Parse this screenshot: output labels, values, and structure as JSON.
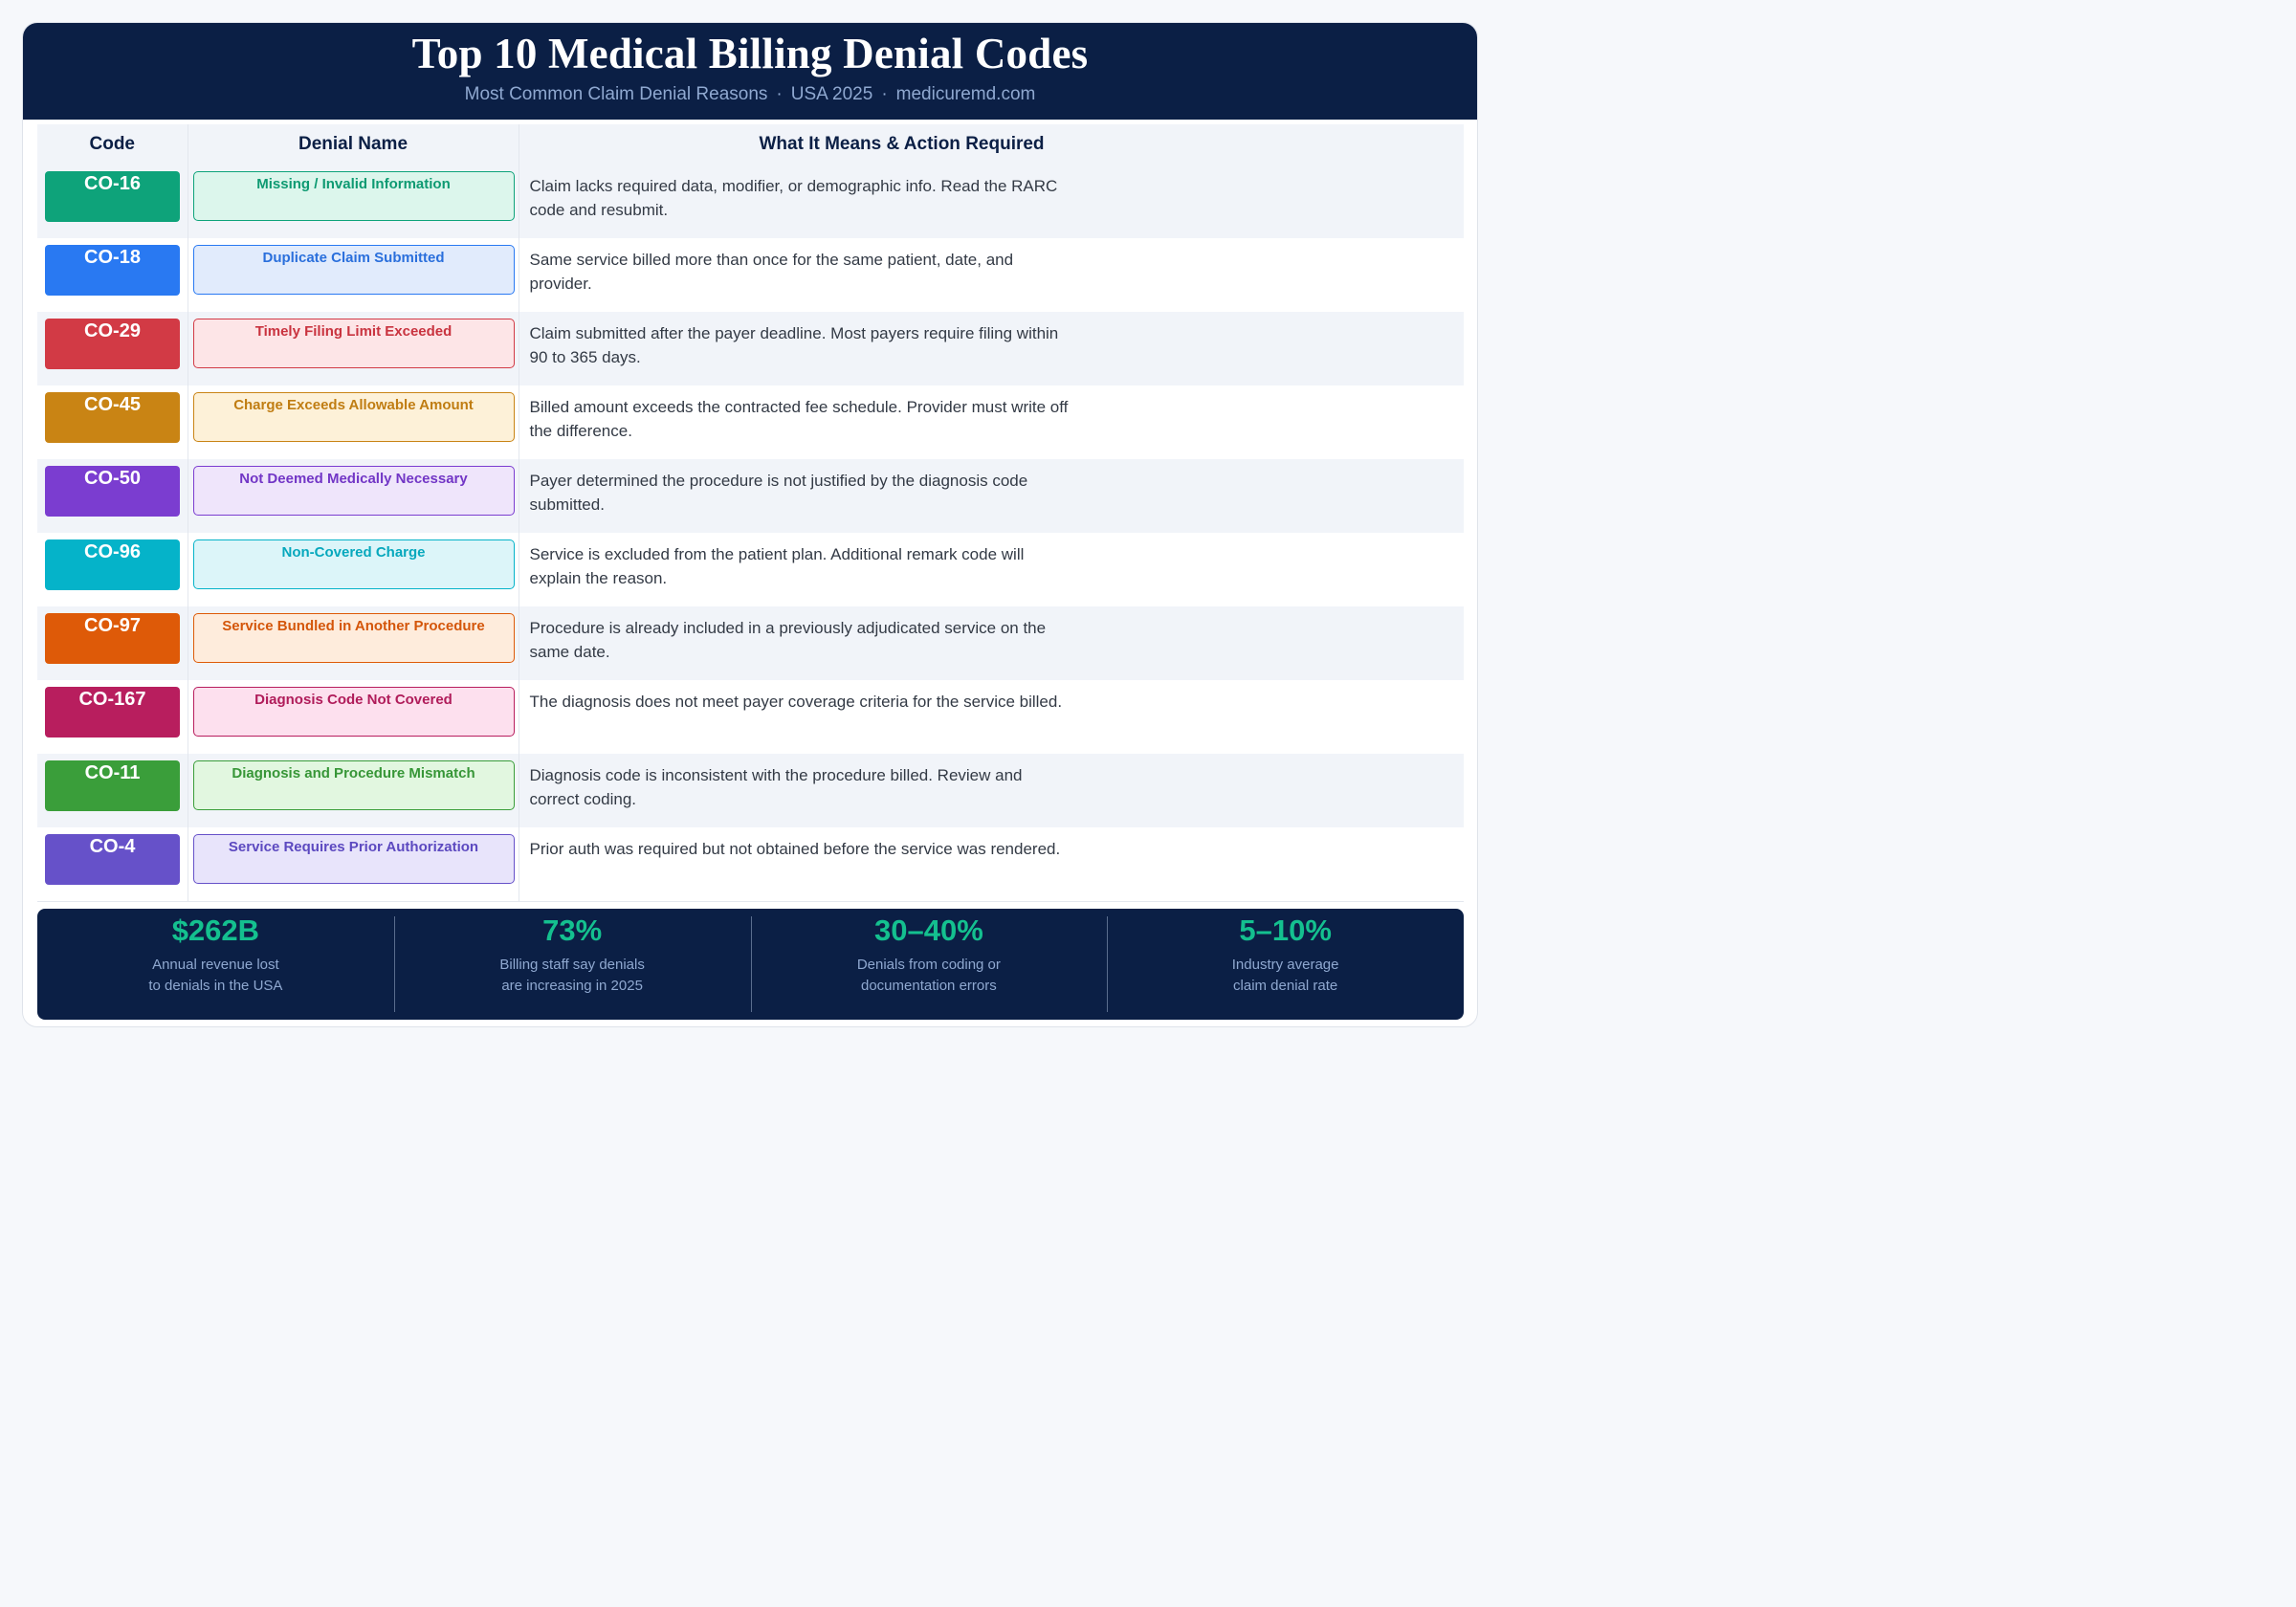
{
  "header": {
    "title": "Top 10 Medical Billing Denial Codes",
    "subtitle_part1": "Most Common Claim Denial Reasons",
    "subtitle_part2": "USA 2025",
    "subtitle_part3": "medicuremd.com",
    "separator": "·"
  },
  "table": {
    "columns": [
      "Code",
      "Denial Name",
      "What It Means & Action Required"
    ],
    "rows": [
      {
        "code": "CO-16",
        "name": "Missing / Invalid Information",
        "meaning": "Claim lacks required data, modifier, or demographic info. Read the RARC code and resubmit.",
        "color": "#0ea37a",
        "pill_bg": "#dcf6ec",
        "pill_text": "#0e9a72"
      },
      {
        "code": "CO-18",
        "name": "Duplicate Claim Submitted",
        "meaning": "Same service billed more than once for the same patient, date, and provider.",
        "color": "#2979f2",
        "pill_bg": "#e1ebfc",
        "pill_text": "#2a6fdc"
      },
      {
        "code": "CO-29",
        "name": "Timely Filing Limit Exceeded",
        "meaning": "Claim submitted after the payer deadline. Most payers require filing within 90 to 365 days.",
        "color": "#d23a45",
        "pill_bg": "#fde5e7",
        "pill_text": "#c9333f"
      },
      {
        "code": "CO-45",
        "name": "Charge Exceeds Allowable Amount",
        "meaning": "Billed amount exceeds the contracted fee schedule. Provider must write off the difference.",
        "color": "#c98414",
        "pill_bg": "#fdf1d8",
        "pill_text": "#c07d12"
      },
      {
        "code": "CO-50",
        "name": "Not Deemed Medically Necessary",
        "meaning": "Payer determined the procedure is not justified by the diagnosis code submitted.",
        "color": "#7b3dd0",
        "pill_bg": "#efe5fb",
        "pill_text": "#7236c6"
      },
      {
        "code": "CO-96",
        "name": "Non-Covered Charge",
        "meaning": "Service is excluded from the patient plan. Additional remark code will explain the reason.",
        "color": "#05b3c9",
        "pill_bg": "#dcf5f9",
        "pill_text": "#07a8bd"
      },
      {
        "code": "CO-97",
        "name": "Service Bundled in Another Procedure",
        "meaning": "Procedure is already included in a previously adjudicated service on the same date.",
        "color": "#de5a08",
        "pill_bg": "#feecdc",
        "pill_text": "#d4560a"
      },
      {
        "code": "CO-167",
        "name": "Diagnosis Code Not Covered",
        "meaning": "The diagnosis does not meet payer coverage criteria for the service billed.",
        "color": "#b81e5e",
        "pill_bg": "#fde0ee",
        "pill_text": "#b01c5a"
      },
      {
        "code": "CO-11",
        "name": "Diagnosis and Procedure Mismatch",
        "meaning": "Diagnosis code is inconsistent with the procedure billed. Review and correct coding.",
        "color": "#3a9e3a",
        "pill_bg": "#e2f7e0",
        "pill_text": "#379637"
      },
      {
        "code": "CO-4",
        "name": "Service Requires Prior Authorization",
        "meaning": "Prior auth was required but not obtained before the service was rendered.",
        "color": "#6651c9",
        "pill_bg": "#e8e4fb",
        "pill_text": "#5c49c0"
      }
    ]
  },
  "stats": [
    {
      "value": "$262B",
      "label": "Annual revenue lost\nto denials in the USA"
    },
    {
      "value": "73%",
      "label": "Billing staff say denials\nare increasing in 2025"
    },
    {
      "value": "30–40%",
      "label": "Denials from coding or\ndocumentation errors"
    },
    {
      "value": "5–10%",
      "label": "Industry average\nclaim denial rate"
    }
  ]
}
